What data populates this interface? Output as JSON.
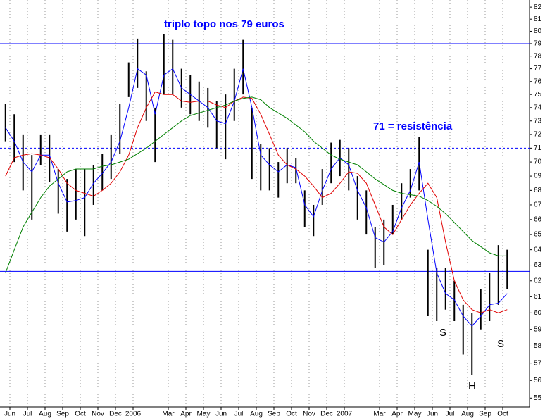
{
  "chart_data": {
    "type": "hlc",
    "log_scale": true,
    "grid": true,
    "bar_color": "#000000",
    "ylim": [
      54.5,
      82.6
    ],
    "yticks": [
      55,
      56,
      57,
      58,
      59,
      60,
      61,
      62,
      63,
      64,
      65,
      66,
      67,
      68,
      69,
      70,
      71,
      72,
      73,
      74,
      75,
      76,
      77,
      78,
      79,
      80,
      81,
      82
    ],
    "xlim": [
      -0.56,
      29.52
    ],
    "xticks": [
      {
        "value": 0,
        "label": "Jun"
      },
      {
        "value": 1,
        "label": "Jul"
      },
      {
        "value": 2,
        "label": "Aug"
      },
      {
        "value": 3,
        "label": "Sep"
      },
      {
        "value": 4,
        "label": "Oct"
      },
      {
        "value": 5,
        "label": "Nov"
      },
      {
        "value": 6,
        "label": "Dec"
      },
      {
        "value": 7,
        "label": "2006"
      },
      {
        "value": 9,
        "label": "Mar"
      },
      {
        "value": 10,
        "label": "Apr"
      },
      {
        "value": 11,
        "label": "May"
      },
      {
        "value": 12,
        "label": "Jun"
      },
      {
        "value": 13,
        "label": "Jul"
      },
      {
        "value": 14,
        "label": "Aug"
      },
      {
        "value": 15,
        "label": "Sep"
      },
      {
        "value": 16,
        "label": "Oct"
      },
      {
        "value": 17,
        "label": "Nov"
      },
      {
        "value": 18,
        "label": "Dec"
      },
      {
        "value": 19,
        "label": "2007"
      },
      {
        "value": 21,
        "label": "Mar"
      },
      {
        "value": 22,
        "label": "Apr"
      },
      {
        "value": 23,
        "label": "May"
      },
      {
        "value": 24,
        "label": "Jun"
      },
      {
        "value": 25,
        "label": "Jul"
      },
      {
        "value": 26,
        "label": "Aug"
      },
      {
        "value": 27,
        "label": "Sep"
      },
      {
        "value": 28,
        "label": "Oct"
      }
    ],
    "x": [
      -0.25,
      0.25,
      0.75,
      1.25,
      1.75,
      2.25,
      2.75,
      3.25,
      3.75,
      4.25,
      4.75,
      5.25,
      5.75,
      6.25,
      6.75,
      7.25,
      7.75,
      8.25,
      8.75,
      9.25,
      9.75,
      10.25,
      10.75,
      11.25,
      11.75,
      12.25,
      12.75,
      13.25,
      13.75,
      14.25,
      14.75,
      15.25,
      15.75,
      16.25,
      16.75,
      17.25,
      17.75,
      18.25,
      18.75,
      19.25,
      19.75,
      20.25,
      20.75,
      21.25,
      21.75,
      22.25,
      22.75,
      23.25,
      23.75,
      24.25,
      24.75,
      25.25,
      25.75,
      26.25,
      26.75,
      27.25,
      27.75,
      28.25
    ],
    "high": [
      74.3,
      73.5,
      72,
      70.5,
      72,
      72,
      69.5,
      68.8,
      69.5,
      69.5,
      69.8,
      70.6,
      72,
      74.3,
      77.5,
      79.4,
      76.8,
      74,
      79.8,
      79.3,
      77,
      76.5,
      76,
      75.5,
      74.5,
      75,
      77,
      79.3,
      74,
      71.3,
      71,
      70,
      71,
      70.3,
      68,
      67,
      69.5,
      71.4,
      71.6,
      71,
      69,
      68,
      65.5,
      66,
      67,
      68.5,
      69.5,
      71.8,
      64,
      62.8,
      62.8,
      62,
      60.5,
      60,
      61.5,
      62.5,
      64.3,
      64
    ],
    "low": [
      71.5,
      70,
      68,
      66,
      69.8,
      68.6,
      66.4,
      65.2,
      66,
      64.9,
      67,
      68,
      68.8,
      70.6,
      74.8,
      75.5,
      73,
      70,
      75,
      75,
      74,
      73.5,
      73,
      72.5,
      71,
      70.2,
      73,
      75,
      68.8,
      68,
      68,
      67.5,
      68.5,
      68.5,
      65.5,
      64.9,
      67,
      68.5,
      69,
      68,
      66,
      65,
      62.8,
      63,
      65,
      66,
      67.5,
      68,
      59.8,
      59.5,
      60.2,
      59.5,
      57.5,
      56.3,
      59,
      59.5,
      60.5,
      61.5
    ],
    "series": [
      {
        "color": "#0000ff",
        "values": [
          72.5,
          71.5,
          70,
          69.3,
          70.5,
          70.5,
          68.5,
          67.2,
          67.3,
          67.5,
          68.5,
          69.2,
          70,
          71.5,
          74,
          77,
          76.5,
          73.5,
          76.5,
          77,
          75.5,
          75,
          74.5,
          74,
          73,
          72.8,
          74.5,
          77,
          74,
          70.5,
          69.8,
          69.3,
          69.8,
          69.6,
          67,
          66.2,
          68,
          69.5,
          70.3,
          69.8,
          68,
          66.8,
          64.8,
          64.5,
          65.2,
          66.8,
          68,
          70,
          66,
          62.5,
          61.2,
          60.8,
          59.8,
          59.2,
          59.8,
          60.5,
          60.6,
          61.2
        ]
      },
      {
        "color": "#e00000",
        "values": [
          69,
          70.3,
          70.5,
          70.6,
          70.5,
          70.3,
          69.5,
          68.5,
          68,
          67.8,
          67.6,
          68,
          68.5,
          69.3,
          70.5,
          72.5,
          74,
          75.2,
          75,
          75,
          74.5,
          74.4,
          74.5,
          74.5,
          74.2,
          74,
          74.5,
          74.8,
          74.7,
          73.5,
          72,
          70.5,
          69.8,
          69.5,
          69,
          68.3,
          67.5,
          67.8,
          68.5,
          69.3,
          69.2,
          68.5,
          67,
          65.5,
          65,
          66,
          67,
          67.8,
          68.5,
          67.5,
          64.5,
          62,
          60.8,
          60.2,
          60,
          60.2,
          60,
          60.2
        ]
      },
      {
        "color": "#008000",
        "values": [
          62.5,
          64,
          65.5,
          66.5,
          67.5,
          68.3,
          68.8,
          69.3,
          69.5,
          69.5,
          69.5,
          69.7,
          69.8,
          70,
          70.2,
          70.6,
          71,
          71.5,
          72,
          72.5,
          73,
          73.4,
          73.6,
          73.8,
          74,
          74.2,
          74.5,
          74.7,
          74.8,
          74.6,
          74,
          73.6,
          73.2,
          72.7,
          72.2,
          71.5,
          71,
          70.5,
          70.2,
          70,
          69.8,
          69.3,
          68.8,
          68.4,
          68,
          67.8,
          67.7,
          67.6,
          67.3,
          66.9,
          66.4,
          65.8,
          65.2,
          64.6,
          64.2,
          63.8,
          63.6,
          63.6
        ]
      }
    ],
    "hline_color": "#0000ff",
    "hlines": [
      {
        "value": 79,
        "dashed": false
      },
      {
        "value": 71,
        "dashed": true
      },
      {
        "value": 62.6,
        "dashed": false
      }
    ],
    "annotations": [
      {
        "text": "triplo topo nos 79 euros",
        "color": "#0000ff"
      },
      {
        "text": "71 = resistência",
        "color": "#0000ff"
      },
      {
        "text": "S",
        "color": "#000000"
      },
      {
        "text": "H",
        "color": "#000000"
      },
      {
        "text": "S",
        "color": "#000000"
      }
    ]
  }
}
